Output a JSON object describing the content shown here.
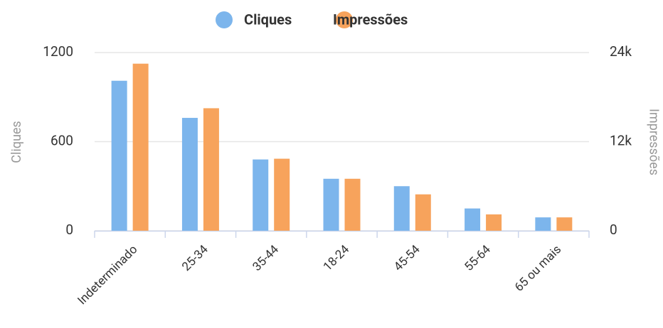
{
  "chart_data": {
    "type": "bar",
    "categories": [
      "Indeterminado",
      "25-34",
      "35-44",
      "18-24",
      "45-54",
      "55-64",
      "65 ou mais"
    ],
    "series": [
      {
        "name": "Cliques",
        "color": "#7cb5ec",
        "values": [
          1010,
          760,
          480,
          350,
          300,
          150,
          90
        ]
      },
      {
        "name": "Impressões",
        "color": "#f7a35c",
        "axis": "y2",
        "values": [
          22500,
          16500,
          9700,
          7000,
          4900,
          2200,
          1800
        ]
      }
    ],
    "ylabel": "Cliques",
    "y2label": "Impressões",
    "ylim": [
      0,
      1200
    ],
    "yticks": [
      0,
      600,
      1200
    ],
    "y2lim": [
      0,
      24000
    ],
    "y2ticks": [
      0,
      {
        "value": 12000,
        "label": "12k"
      },
      {
        "value": 24000,
        "label": "24k"
      }
    ],
    "grid": true,
    "legend": "top"
  }
}
